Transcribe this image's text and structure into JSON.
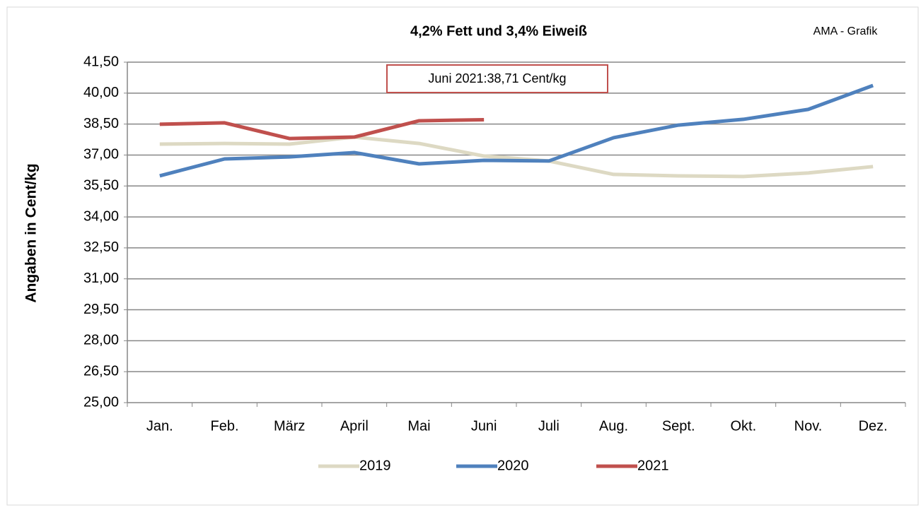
{
  "chart_data": {
    "type": "line",
    "title": "4,2% Fett und 3,4% Eiweiß",
    "source": "AMA - Grafik",
    "y_label": "Angaben in Cent/kg",
    "annotation": "Juni 2021:38,71 Cent/kg",
    "categories": [
      "Jan.",
      "Feb.",
      "März",
      "April",
      "Mai",
      "Juni",
      "Juli",
      "Aug.",
      "Sept.",
      "Okt.",
      "Nov.",
      "Dez."
    ],
    "series": [
      {
        "name": "2019",
        "color": "#ddd9c3",
        "values": [
          37.53,
          37.56,
          37.53,
          37.87,
          37.56,
          36.95,
          36.71,
          36.06,
          35.99,
          35.96,
          36.13,
          36.44
        ]
      },
      {
        "name": "2020",
        "color": "#4f81bd",
        "values": [
          35.99,
          36.81,
          36.91,
          37.12,
          36.57,
          36.74,
          36.71,
          37.84,
          38.45,
          38.73,
          39.21,
          40.37
        ]
      },
      {
        "name": "2021",
        "color": "#c0504d",
        "values": [
          38.49,
          38.56,
          37.8,
          37.87,
          38.66,
          38.71,
          null,
          null,
          null,
          null,
          null,
          null
        ]
      }
    ],
    "ylim": [
      25,
      41.5
    ],
    "yticks": [
      {
        "value": 25,
        "label": "25,00"
      },
      {
        "value": 26.5,
        "label": "26,50"
      },
      {
        "value": 28,
        "label": "28,00"
      },
      {
        "value": 29.5,
        "label": "29,50"
      },
      {
        "value": 31,
        "label": "31,00"
      },
      {
        "value": 32.5,
        "label": "32,50"
      },
      {
        "value": 34,
        "label": "34,00"
      },
      {
        "value": 35.5,
        "label": "35,50"
      },
      {
        "value": 37,
        "label": "37,00"
      },
      {
        "value": 38.5,
        "label": "38,50"
      },
      {
        "value": 40,
        "label": "40,00"
      },
      {
        "value": 41.5,
        "label": "41,50"
      }
    ],
    "grid": true,
    "legend": "bottom"
  }
}
